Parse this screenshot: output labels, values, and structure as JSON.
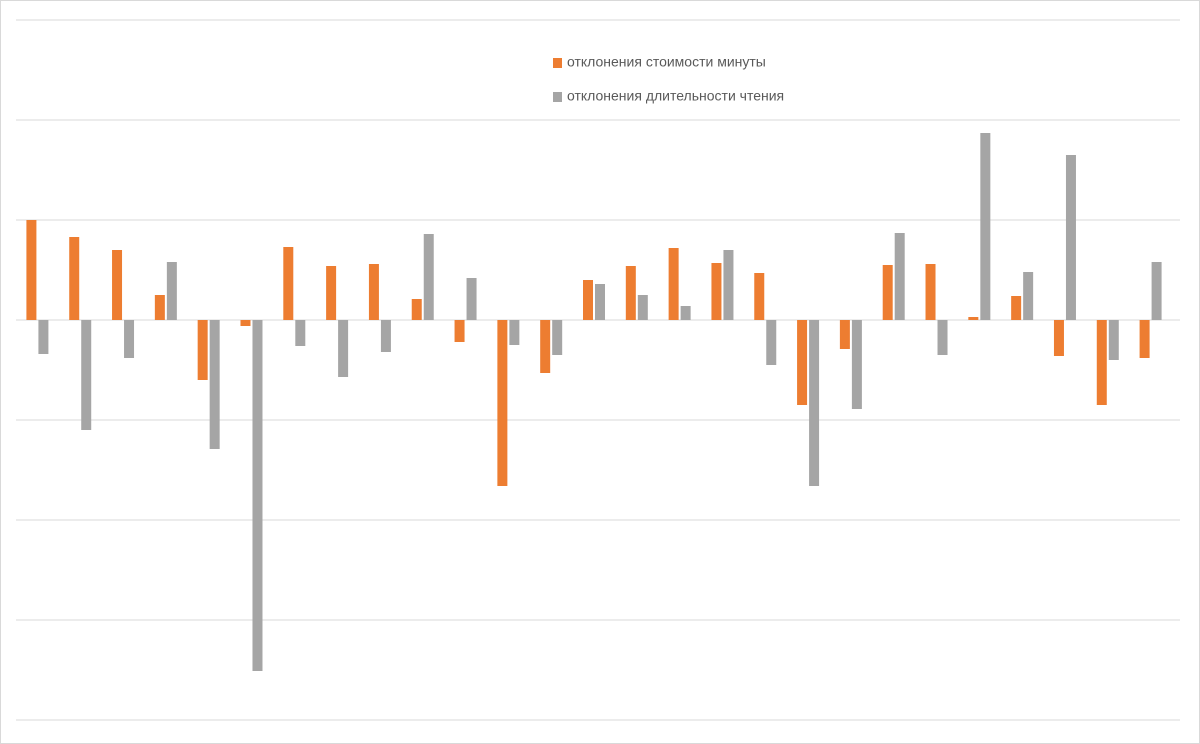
{
  "chart_data": {
    "type": "bar",
    "categories": [
      null,
      null,
      null,
      null,
      null,
      null,
      null,
      null,
      null,
      null,
      null,
      null,
      null,
      null,
      null,
      null,
      null,
      null,
      null,
      null,
      null,
      null,
      null,
      null,
      null,
      null,
      null
    ],
    "series": [
      {
        "name": "отклонения стоимости минуты",
        "color": "#ed7d31",
        "values": [
          1.0,
          0.83,
          0.7,
          0.25,
          -0.6,
          -0.06,
          0.73,
          0.54,
          0.56,
          0.21,
          -0.22,
          -1.66,
          -0.53,
          0.4,
          0.54,
          0.72,
          0.57,
          0.47,
          -0.85,
          -0.29,
          0.55,
          0.56,
          0.03,
          0.24,
          -0.36,
          -0.85,
          -0.38
        ]
      },
      {
        "name": "отклонения длительности чтения",
        "color": "#a5a5a5",
        "values": [
          -0.34,
          -1.1,
          -0.38,
          0.58,
          -1.29,
          -3.51,
          -0.26,
          -0.57,
          -0.32,
          0.86,
          0.42,
          -0.25,
          -0.35,
          0.36,
          0.25,
          0.14,
          0.7,
          -0.45,
          -1.66,
          -0.89,
          0.87,
          -0.35,
          1.87,
          0.48,
          1.65,
          -0.4,
          0.58
        ]
      }
    ],
    "ylim": [
      -4,
      3
    ],
    "yticks": [
      -4,
      -3,
      -2,
      -1,
      0,
      1,
      2,
      3
    ],
    "grid": true,
    "legend": "top"
  }
}
